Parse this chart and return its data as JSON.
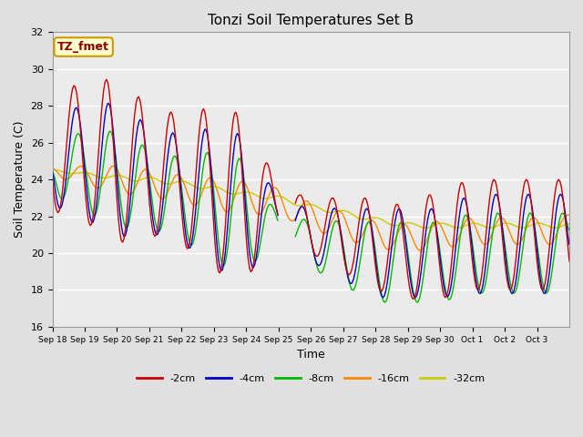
{
  "title": "Tonzi Soil Temperatures Set B",
  "xlabel": "Time",
  "ylabel": "Soil Temperature (C)",
  "ylim": [
    16,
    32
  ],
  "background_color": "#e0e0e0",
  "plot_bg_color": "#ebebeb",
  "annotation_text": "TZ_fmet",
  "annotation_bg": "#ffffcc",
  "annotation_border": "#cc9900",
  "legend_labels": [
    "-2cm",
    "-4cm",
    "-8cm",
    "-16cm",
    "-32cm"
  ],
  "line_colors": [
    "#cc0000",
    "#0000cc",
    "#00bb00",
    "#ff8800",
    "#cccc00"
  ],
  "tick_labels": [
    "Sep 18",
    "Sep 19",
    "Sep 20",
    "Sep 21",
    "Sep 22",
    "Sep 23",
    "Sep 24",
    "Sep 25",
    "Sep 26",
    "Sep 27",
    "Sep 28",
    "Sep 29",
    "Sep 30",
    "Oct 1",
    "Oct 2",
    "Oct 3"
  ],
  "yticks": [
    16,
    18,
    20,
    22,
    24,
    26,
    28,
    30,
    32
  ],
  "figsize": [
    6.4,
    4.8
  ],
  "dpi": 100
}
